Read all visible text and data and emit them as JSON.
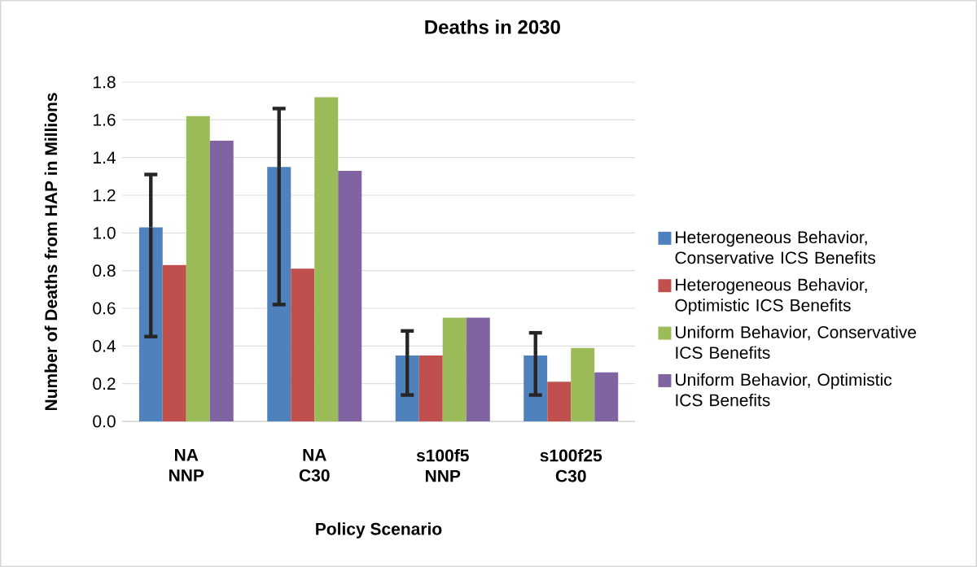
{
  "chart_data": {
    "type": "bar",
    "title": "Deaths in 2030",
    "xlabel": "Policy Scenario",
    "ylabel": "Number of Deaths from HAP in Millions",
    "categories": [
      "NA\nNNP",
      "NA\nC30",
      "s100f5\nNNP",
      "s100f25\nC30"
    ],
    "series": [
      {
        "name": "Heterogeneous Behavior, Conservative ICS Benefits",
        "color": "#4f81bd",
        "values": [
          1.03,
          1.35,
          0.35,
          0.35
        ],
        "errors": [
          [
            0.45,
            1.31
          ],
          [
            0.62,
            1.66
          ],
          [
            0.14,
            0.48
          ],
          [
            0.14,
            0.47
          ]
        ]
      },
      {
        "name": "Heterogeneous Behavior, Optimistic ICS Benefits",
        "color": "#c0504d",
        "values": [
          0.83,
          0.81,
          0.35,
          0.21
        ]
      },
      {
        "name": "Uniform Behavior, Conservative ICS Benefits",
        "color": "#9bbb59",
        "values": [
          1.62,
          1.72,
          0.55,
          0.39
        ]
      },
      {
        "name": "Uniform Behavior, Optimistic ICS Benefits",
        "color": "#8064a2",
        "values": [
          1.49,
          1.33,
          0.55,
          0.26
        ]
      }
    ],
    "ylim": [
      0,
      1.8
    ],
    "yticks": [
      {
        "value": 0,
        "label": "0.0"
      },
      {
        "value": 0.2,
        "label": "0.2"
      },
      {
        "value": 0.4,
        "label": "0.4"
      },
      {
        "value": 0.6,
        "label": "0.6"
      },
      {
        "value": 0.8,
        "label": "0.8"
      },
      {
        "value": 1.0,
        "label": "1.0"
      },
      {
        "value": 1.2,
        "label": "1.2"
      },
      {
        "value": 1.4,
        "label": "1.4"
      },
      {
        "value": 1.6,
        "label": "1.6"
      },
      {
        "value": 1.8,
        "label": "1.8"
      }
    ],
    "grid": "y",
    "legend": "right"
  }
}
